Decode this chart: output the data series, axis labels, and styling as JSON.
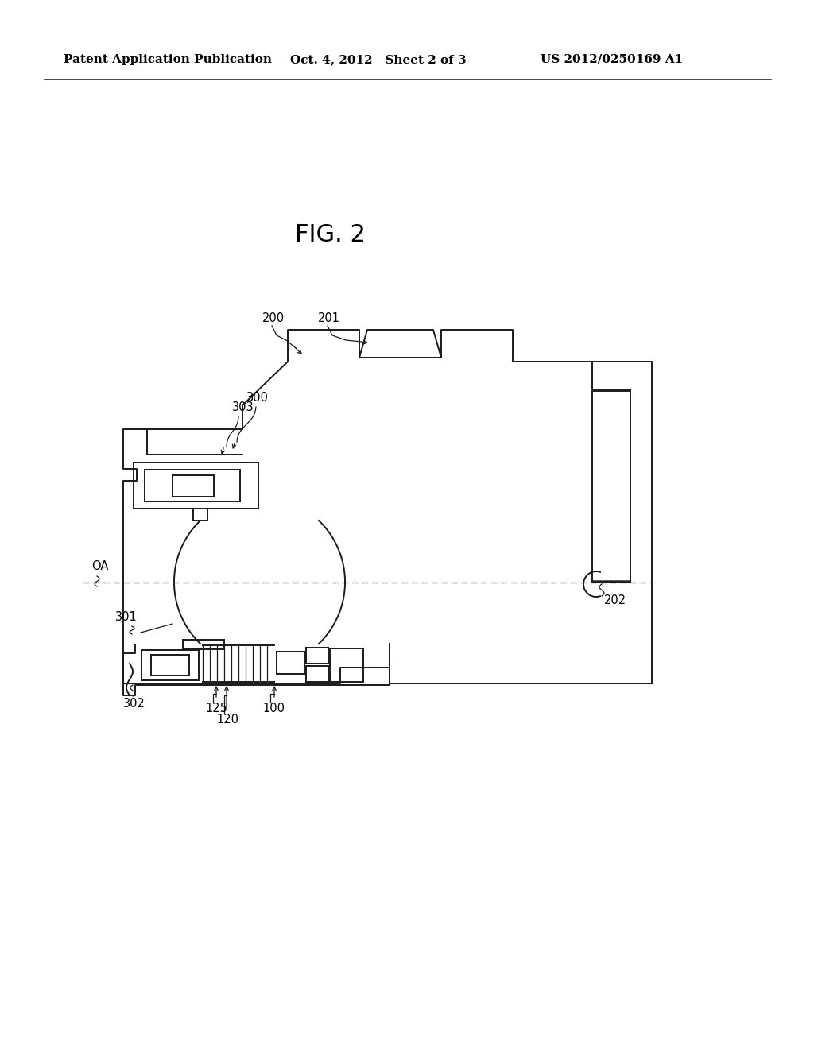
{
  "bg_color": "#ffffff",
  "header_left": "Patent Application Publication",
  "header_mid": "Oct. 4, 2012   Sheet 2 of 3",
  "header_right": "US 2012/0250169 A1",
  "fig_label": "FIG. 2",
  "line_color": "#1a1a1a"
}
